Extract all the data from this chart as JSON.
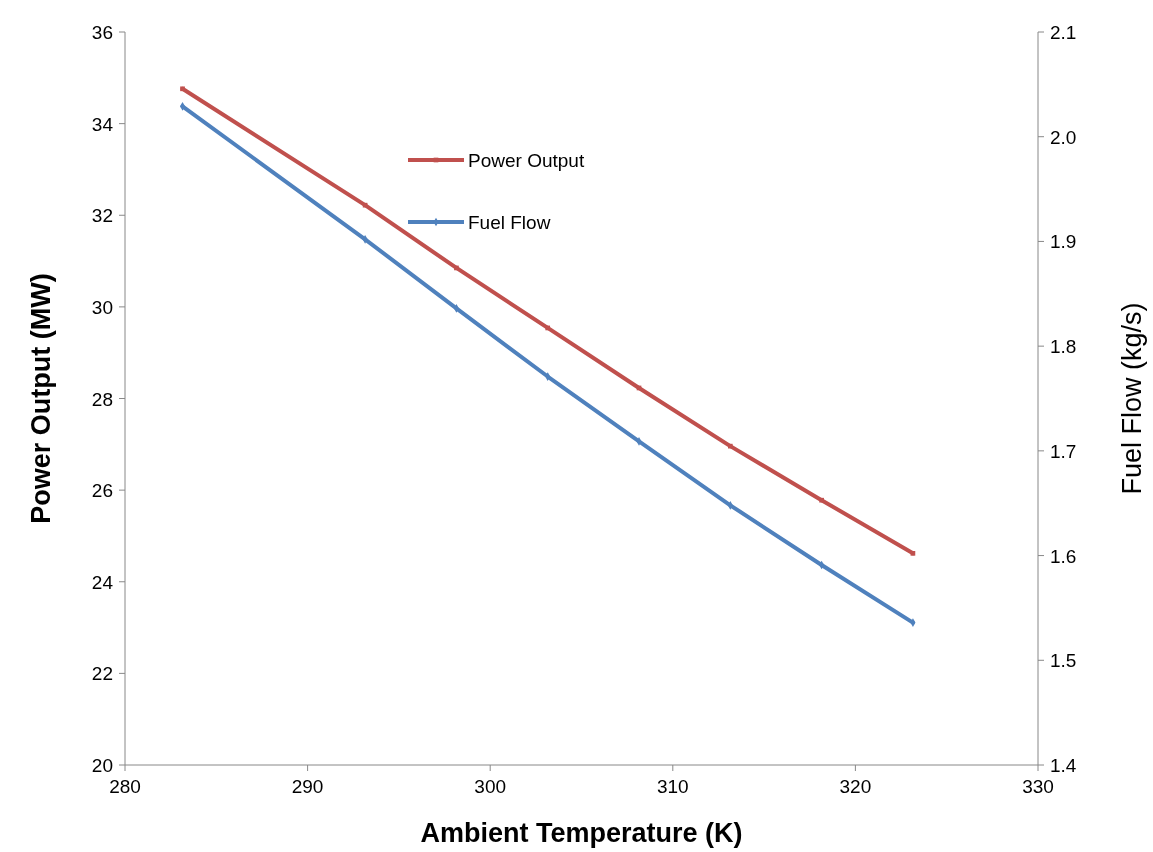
{
  "chart_data": {
    "type": "line",
    "xlabel": "Ambient Temperature (K)",
    "ylabel": "Power Output (MW)",
    "y2label": "Fuel Flow (kg/s)",
    "x": [
      283.15,
      293.15,
      298.15,
      303.15,
      308.15,
      313.15,
      318.15,
      323.15
    ],
    "series": [
      {
        "name": "Power Output",
        "color": "#c0504d",
        "marker": "square",
        "values": [
          34.76,
          32.22,
          30.85,
          29.54,
          28.23,
          26.96,
          25.78,
          24.62
        ]
      },
      {
        "name": "Fuel Flow",
        "color": "#4f81bd",
        "marker": "diamond",
        "axis": "y2",
        "values": [
          2.029,
          1.902,
          1.836,
          1.771,
          1.709,
          1.648,
          1.591,
          1.536
        ]
      }
    ],
    "xlim": [
      280,
      330
    ],
    "xticks": [
      280,
      290,
      300,
      310,
      320,
      330
    ],
    "ylim": [
      20,
      36
    ],
    "yticks": [
      20,
      22,
      24,
      26,
      28,
      30,
      32,
      34,
      36
    ],
    "y2lim": [
      1.4,
      2.1
    ],
    "y2ticks": [
      1.4,
      1.5,
      1.6,
      1.7,
      1.8,
      1.9,
      {
        "value": 2,
        "label": "2.0"
      },
      2.1
    ],
    "legend": "top",
    "grid": false,
    "line_style": "solid"
  }
}
